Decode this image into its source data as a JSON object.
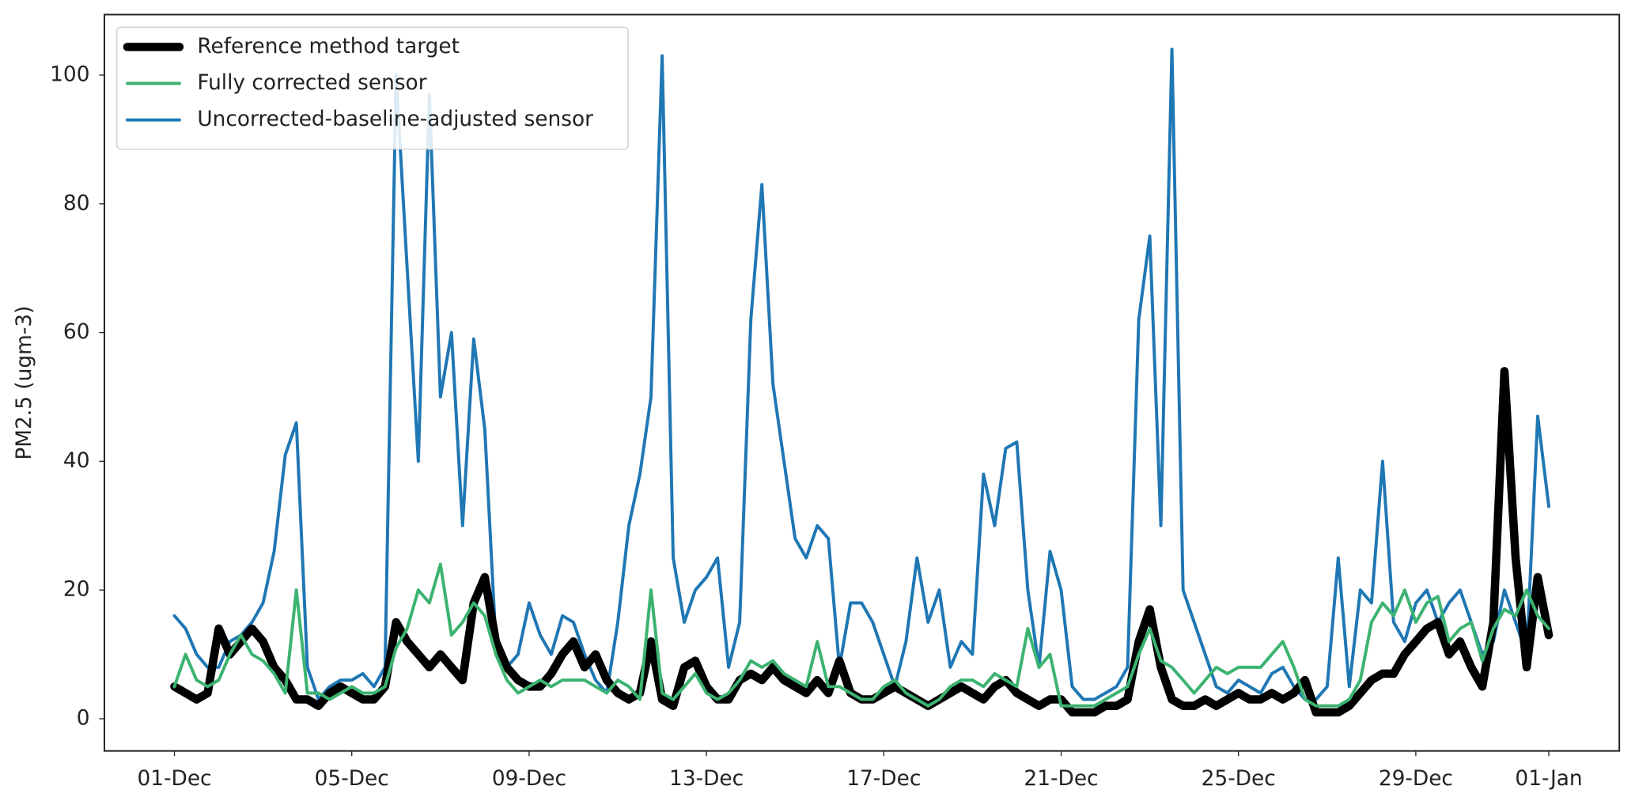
{
  "chart_data": {
    "type": "line",
    "ylabel": "PM2.5 (ugm-3)",
    "legend": "upper left",
    "x": [
      0,
      0.25,
      0.5,
      0.75,
      1,
      1.25,
      1.5,
      1.75,
      2,
      2.25,
      2.5,
      2.75,
      3,
      3.25,
      3.5,
      3.75,
      4,
      4.25,
      4.5,
      4.75,
      5,
      5.25,
      5.5,
      5.75,
      6,
      6.25,
      6.5,
      6.75,
      7,
      7.25,
      7.5,
      7.75,
      8,
      8.25,
      8.5,
      8.75,
      9,
      9.25,
      9.5,
      9.75,
      10,
      10.25,
      10.5,
      10.75,
      11,
      11.25,
      11.5,
      11.75,
      12,
      12.25,
      12.5,
      12.75,
      13,
      13.25,
      13.5,
      13.75,
      14,
      14.25,
      14.5,
      14.75,
      15,
      15.25,
      15.5,
      15.75,
      16,
      16.25,
      16.5,
      16.75,
      17,
      17.25,
      17.5,
      17.75,
      18,
      18.25,
      18.5,
      18.75,
      19,
      19.25,
      19.5,
      19.75,
      20,
      20.25,
      20.5,
      20.75,
      21,
      21.25,
      21.5,
      21.75,
      22,
      22.25,
      22.5,
      22.75,
      23,
      23.25,
      23.5,
      23.75,
      24,
      24.25,
      24.5,
      24.75,
      25,
      25.25,
      25.5,
      25.75,
      26,
      26.25,
      26.5,
      26.75,
      27,
      27.25,
      27.5,
      27.75,
      28,
      28.25,
      28.5,
      28.75,
      29,
      29.25,
      29.5,
      29.75,
      30,
      30.25,
      30.5,
      30.75,
      31
    ],
    "series": [
      {
        "name": "Reference method target",
        "color": "#000000",
        "width": 8,
        "values": [
          5,
          4,
          3,
          4,
          14,
          10,
          12,
          14,
          12,
          8,
          6,
          3,
          3,
          2,
          4,
          5,
          4,
          3,
          3,
          5,
          15,
          12,
          10,
          8,
          10,
          8,
          6,
          18,
          22,
          12,
          8,
          6,
          5,
          5,
          7,
          10,
          12,
          8,
          10,
          6,
          4,
          3,
          4,
          12,
          3,
          2,
          8,
          9,
          5,
          3,
          3,
          6,
          7,
          6,
          8,
          6,
          5,
          4,
          6,
          4,
          9,
          4,
          3,
          3,
          4,
          5,
          4,
          3,
          2,
          3,
          4,
          5,
          4,
          3,
          5,
          6,
          4,
          3,
          2,
          3,
          3,
          1,
          1,
          1,
          2,
          2,
          3,
          12,
          17,
          8,
          3,
          2,
          2,
          3,
          2,
          3,
          4,
          3,
          3,
          4,
          3,
          4,
          6,
          1,
          1,
          1,
          2,
          4,
          6,
          7,
          7,
          10,
          12,
          14,
          15,
          10,
          12,
          8,
          5,
          15,
          54,
          25,
          8,
          22,
          13
        ]
      },
      {
        "name": "Fully corrected sensor",
        "color": "#3cb371",
        "width": 3,
        "values": [
          5,
          10,
          6,
          5,
          6,
          10,
          13,
          10,
          9,
          7,
          4,
          20,
          4,
          4,
          3,
          4,
          5,
          4,
          4,
          5,
          11,
          14,
          20,
          18,
          24,
          13,
          15,
          18,
          16,
          10,
          6,
          4,
          5,
          6,
          5,
          6,
          6,
          6,
          5,
          4,
          6,
          5,
          3,
          20,
          4,
          3,
          5,
          7,
          4,
          3,
          4,
          6,
          9,
          8,
          9,
          7,
          6,
          5,
          12,
          5,
          5,
          4,
          3,
          3,
          5,
          6,
          4,
          3,
          2,
          3,
          5,
          6,
          6,
          5,
          7,
          6,
          5,
          14,
          8,
          10,
          2,
          2,
          2,
          2,
          3,
          4,
          5,
          10,
          14,
          9,
          8,
          6,
          4,
          6,
          8,
          7,
          8,
          8,
          8,
          10,
          12,
          8,
          3,
          2,
          2,
          2,
          3,
          6,
          15,
          18,
          16,
          20,
          15,
          18,
          19,
          12,
          14,
          15,
          9,
          14,
          17,
          16,
          20,
          16,
          14
        ]
      },
      {
        "name": "Uncorrected-baseline-adjusted sensor",
        "color": "#1f77b4",
        "width": 3,
        "values": [
          16,
          14,
          10,
          8,
          8,
          12,
          13,
          15,
          18,
          26,
          41,
          46,
          8,
          3,
          5,
          6,
          6,
          7,
          5,
          8,
          100,
          70,
          40,
          97,
          50,
          60,
          30,
          59,
          45,
          12,
          8,
          10,
          18,
          13,
          10,
          16,
          15,
          10,
          6,
          4,
          15,
          30,
          38,
          50,
          103,
          25,
          15,
          20,
          22,
          25,
          8,
          15,
          62,
          83,
          52,
          40,
          28,
          25,
          30,
          28,
          8,
          18,
          18,
          15,
          10,
          5,
          12,
          25,
          15,
          20,
          8,
          12,
          10,
          38,
          30,
          42,
          43,
          20,
          8,
          26,
          20,
          5,
          3,
          3,
          4,
          5,
          8,
          62,
          75,
          30,
          104,
          20,
          15,
          10,
          5,
          4,
          6,
          5,
          4,
          7,
          8,
          5,
          3,
          3,
          5,
          25,
          5,
          20,
          18,
          40,
          15,
          12,
          18,
          20,
          15,
          18,
          20,
          15,
          10,
          12,
          20,
          15,
          10,
          47,
          33
        ]
      }
    ],
    "xlim": [
      -1.58,
      32.59
    ],
    "xticks": [
      {
        "value": 0,
        "label": "01-Dec"
      },
      {
        "value": 4,
        "label": "05-Dec"
      },
      {
        "value": 8,
        "label": "09-Dec"
      },
      {
        "value": 12,
        "label": "13-Dec"
      },
      {
        "value": 16,
        "label": "17-Dec"
      },
      {
        "value": 20,
        "label": "21-Dec"
      },
      {
        "value": 24,
        "label": "25-Dec"
      },
      {
        "value": 28,
        "label": "29-Dec"
      },
      {
        "value": 31,
        "label": "01-Jan"
      }
    ],
    "ylim": [
      -5,
      109.4
    ],
    "yticks": [
      0,
      20,
      40,
      60,
      80,
      100
    ],
    "grid": false
  }
}
